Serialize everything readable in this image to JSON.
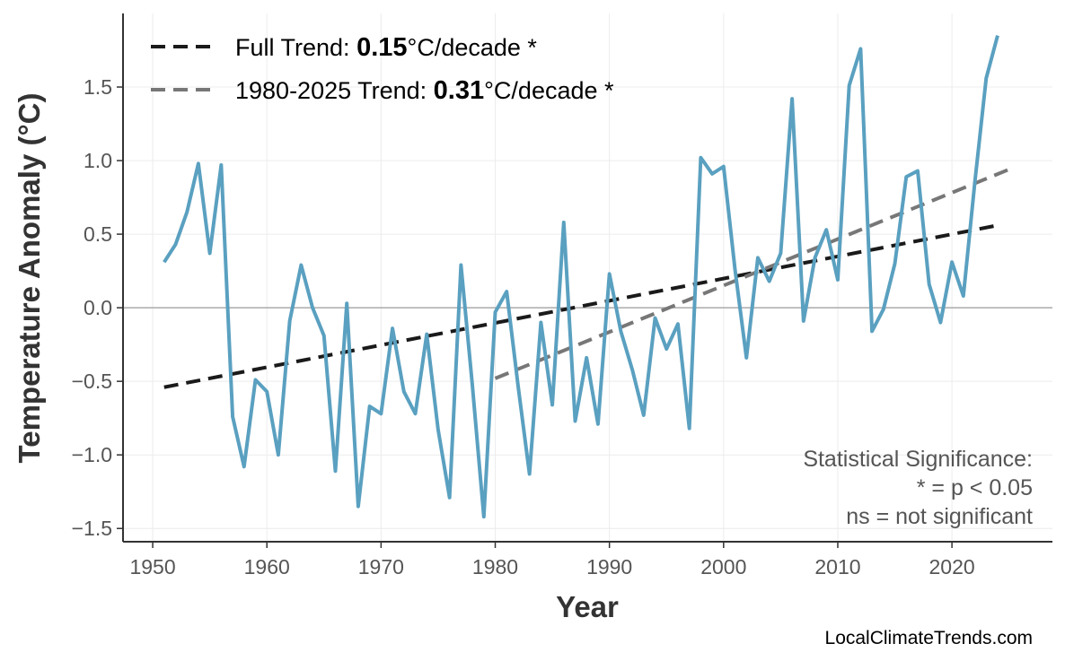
{
  "chart_data": {
    "type": "line",
    "title": "",
    "xlabel": "Year",
    "ylabel": "Temperature Anomaly (°C)",
    "xlim": [
      1947.4,
      2028.8
    ],
    "ylim": [
      -1.59,
      2.0
    ],
    "xticks": [
      1950,
      1960,
      1970,
      1980,
      1990,
      2000,
      2010,
      2020
    ],
    "yticks": [
      -1.5,
      -1.0,
      -0.5,
      0.0,
      0.5,
      1.0,
      1.5
    ],
    "ytick_labels": [
      "−1.5",
      "−1.0",
      "−0.5",
      "0.0",
      "0.5",
      "1.0",
      "1.5"
    ],
    "grid": true,
    "legend_placement": "top-left",
    "colors": {
      "series": "#5aa0c0",
      "full_trend": "#1a1a1a",
      "recent_trend": "#777777",
      "zero_line": "#aaaaaa"
    },
    "series": [
      {
        "x": [
          1951,
          1952,
          1953,
          1954,
          1955,
          1956,
          1957,
          1958,
          1959,
          1960,
          1961,
          1962,
          1963,
          1964,
          1965,
          1966,
          1967,
          1968,
          1969,
          1970,
          1971,
          1972,
          1973,
          1974,
          1975,
          1976,
          1977,
          1978,
          1979,
          1980,
          1981,
          1982,
          1983,
          1984,
          1985,
          1986,
          1987,
          1988,
          1989,
          1990,
          1991,
          1992,
          1993,
          1994,
          1995,
          1996,
          1997,
          1998,
          1999,
          2000,
          2001,
          2002,
          2003,
          2004,
          2005,
          2006,
          2007,
          2008,
          2009,
          2010,
          2011,
          2012,
          2013,
          2014,
          2015,
          2016,
          2017,
          2018,
          2019,
          2020,
          2021,
          2022,
          2023,
          2024
        ],
        "values": [
          0.31,
          0.43,
          0.65,
          0.98,
          0.37,
          0.97,
          -0.74,
          -1.08,
          -0.49,
          -0.57,
          -1.0,
          -0.09,
          0.29,
          0.0,
          -0.19,
          -1.11,
          0.03,
          -1.35,
          -0.67,
          -0.72,
          -0.14,
          -0.57,
          -0.72,
          -0.18,
          -0.83,
          -1.29,
          0.29,
          -0.53,
          -1.42,
          -0.03,
          0.11,
          -0.53,
          -1.13,
          -0.1,
          -0.66,
          0.58,
          -0.77,
          -0.34,
          -0.79,
          0.23,
          -0.16,
          -0.42,
          -0.73,
          -0.07,
          -0.28,
          -0.11,
          -0.82,
          1.02,
          0.91,
          0.96,
          0.26,
          -0.34,
          0.34,
          0.18,
          0.37,
          1.42,
          -0.09,
          0.34,
          0.53,
          0.19,
          1.51,
          1.76,
          -0.16,
          -0.01,
          0.3,
          0.89,
          0.93,
          0.16,
          -0.1,
          0.31,
          0.08,
          0.85,
          1.56,
          1.85
        ]
      }
    ],
    "trends": [
      {
        "label_prefix": "Full Trend: ",
        "value": "0.15",
        "label_suffix": "°C/decade *",
        "x": [
          1951,
          2024
        ],
        "y": [
          -0.54,
          0.56
        ]
      },
      {
        "label_prefix": "1980-2025 Trend: ",
        "value": "0.31",
        "label_suffix": "°C/decade *",
        "x": [
          1980,
          2025
        ],
        "y": [
          -0.48,
          0.94
        ]
      }
    ],
    "annotation": [
      "Statistical Significance:",
      "* = p < 0.05",
      "ns = not significant"
    ],
    "watermark": "LocalClimateTrends.com"
  }
}
